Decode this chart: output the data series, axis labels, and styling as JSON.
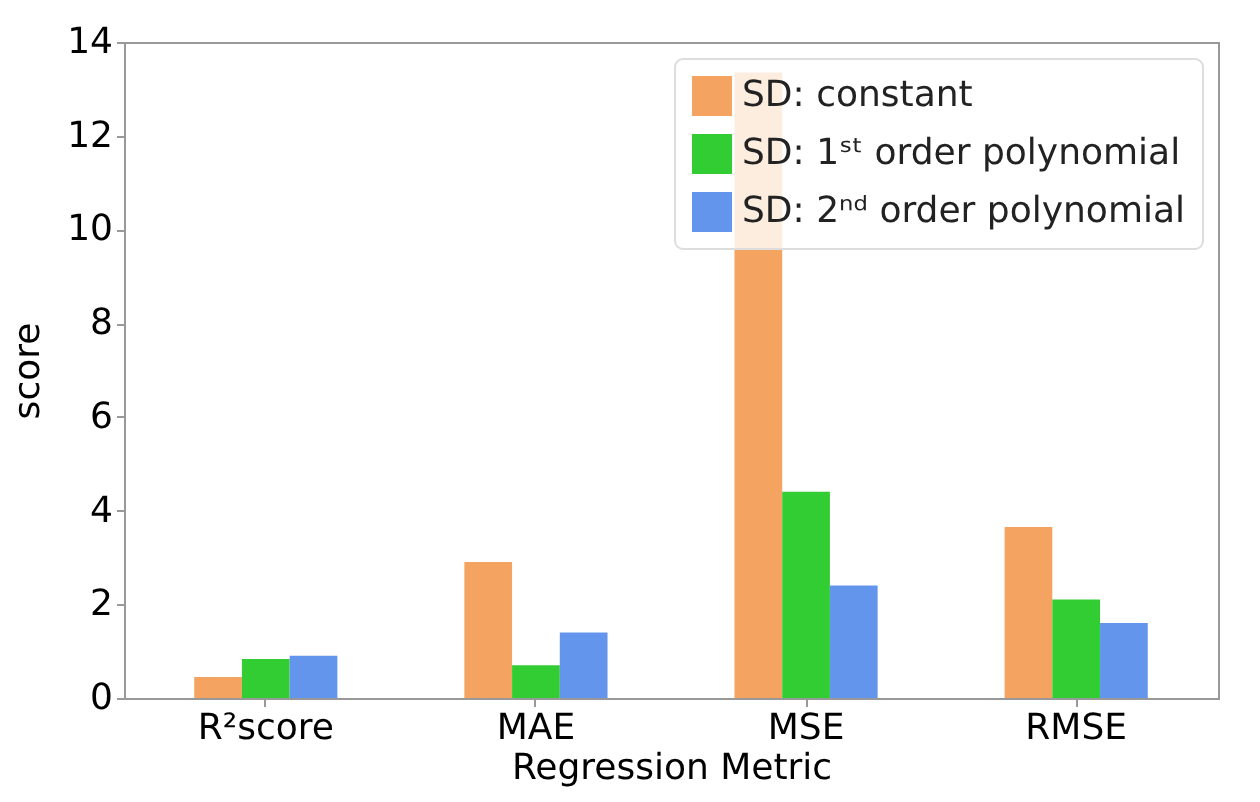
{
  "chart_data": {
    "type": "bar",
    "xlabel": "Regression Metric",
    "ylabel": "score",
    "categories": [
      "R²score",
      "MAE",
      "MSE",
      "RMSE"
    ],
    "series": [
      {
        "name": "SD: constant",
        "color": "#f4a460",
        "values": [
          0.45,
          2.9,
          13.35,
          3.65
        ]
      },
      {
        "name": "SD: 1ˢᵗ order polynomial",
        "color": "#32cd32",
        "values": [
          0.83,
          0.7,
          4.4,
          2.1
        ]
      },
      {
        "name": "SD: 2ⁿᵈ order polynomial",
        "color": "#6495ed",
        "values": [
          0.9,
          1.4,
          2.4,
          1.6
        ]
      }
    ],
    "ylim": [
      0,
      14
    ],
    "yticks": [
      0,
      2,
      4,
      6,
      8,
      10,
      12,
      14
    ],
    "grid": false,
    "legend": "top right"
  }
}
